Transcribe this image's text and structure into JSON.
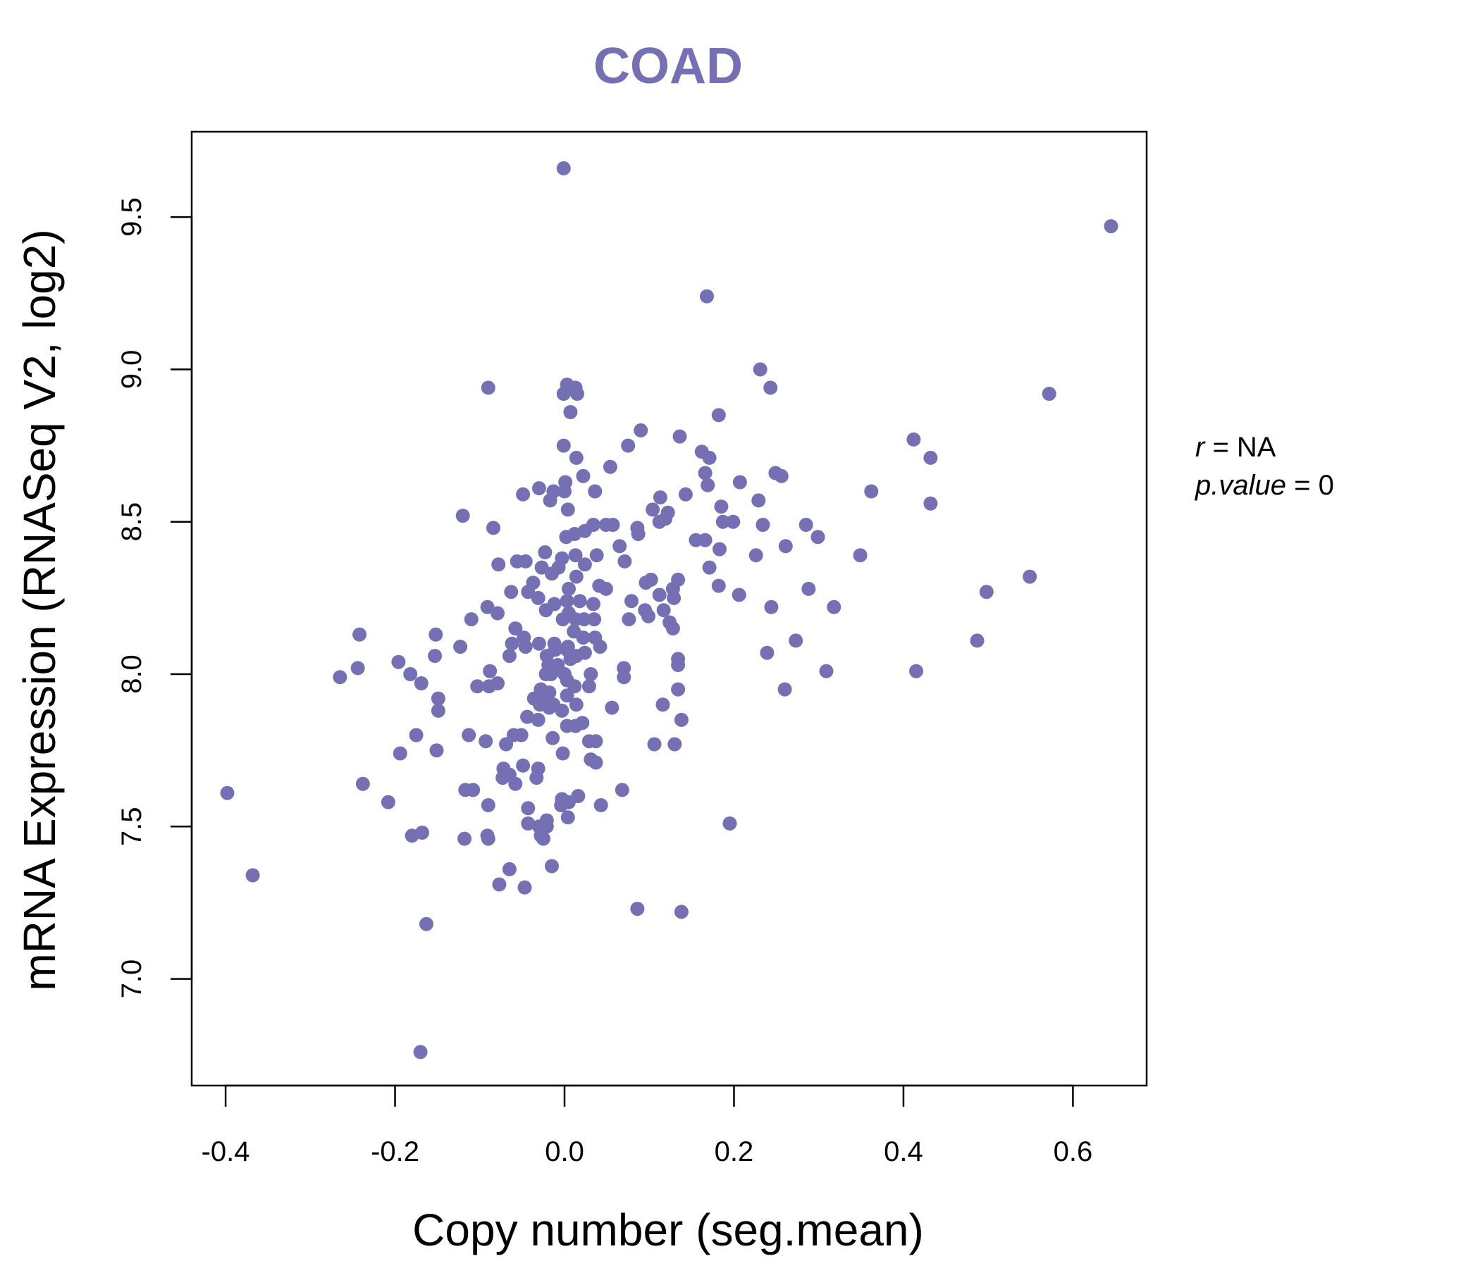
{
  "chart_data": {
    "type": "scatter",
    "title": "COAD",
    "xlabel": "Copy number (seg.mean)",
    "ylabel": "mRNA Expression (RNASeq V2, log2)",
    "xlim": [
      -0.44,
      0.687
    ],
    "ylim": [
      6.65,
      9.78
    ],
    "xticks": [
      "-0.4",
      "-0.2",
      "0.0",
      "0.2",
      "0.4",
      "0.6"
    ],
    "yticks": [
      "7.0",
      "7.5",
      "8.0",
      "8.5",
      "9.0",
      "9.5"
    ],
    "grid": false,
    "point_color": "#7570b3",
    "stats": {
      "r_label": "r",
      "r_value": "NA",
      "p_label": "p.value",
      "p_value": "0"
    },
    "points": [
      [
        -0.001,
        9.66
      ],
      [
        0.645,
        9.47
      ],
      [
        0.168,
        9.24
      ],
      [
        0.003,
        8.95
      ],
      [
        0.013,
        8.94
      ],
      [
        0.015,
        8.92
      ],
      [
        -0.001,
        8.92
      ],
      [
        -0.09,
        8.94
      ],
      [
        0.231,
        9.0
      ],
      [
        0.243,
        8.94
      ],
      [
        0.572,
        8.92
      ],
      [
        0.007,
        8.86
      ],
      [
        0.182,
        8.85
      ],
      [
        0.09,
        8.8
      ],
      [
        0.136,
        8.78
      ],
      [
        -0.001,
        8.75
      ],
      [
        0.075,
        8.75
      ],
      [
        0.162,
        8.73
      ],
      [
        0.412,
        8.77
      ],
      [
        0.432,
        8.71
      ],
      [
        0.014,
        8.71
      ],
      [
        0.171,
        8.71
      ],
      [
        0.166,
        8.66
      ],
      [
        0.054,
        8.68
      ],
      [
        0.022,
        8.65
      ],
      [
        0.249,
        8.66
      ],
      [
        0.256,
        8.65
      ],
      [
        0.001,
        8.63
      ],
      [
        0.207,
        8.63
      ],
      [
        0.169,
        8.62
      ],
      [
        -0.03,
        8.61
      ],
      [
        -0.013,
        8.6
      ],
      [
        0.0,
        8.6
      ],
      [
        0.036,
        8.6
      ],
      [
        -0.049,
        8.59
      ],
      [
        0.362,
        8.6
      ],
      [
        0.143,
        8.59
      ],
      [
        -0.017,
        8.57
      ],
      [
        0.113,
        8.58
      ],
      [
        0.229,
        8.57
      ],
      [
        0.432,
        8.56
      ],
      [
        0.004,
        8.54
      ],
      [
        0.104,
        8.54
      ],
      [
        0.122,
        8.53
      ],
      [
        0.185,
        8.55
      ],
      [
        -0.12,
        8.52
      ],
      [
        0.112,
        8.5
      ],
      [
        0.119,
        8.51
      ],
      [
        0.187,
        8.5
      ],
      [
        0.199,
        8.5
      ],
      [
        0.234,
        8.49
      ],
      [
        0.285,
        8.49
      ],
      [
        0.057,
        8.49
      ],
      [
        0.049,
        8.49
      ],
      [
        0.034,
        8.49
      ],
      [
        0.086,
        8.48
      ],
      [
        0.024,
        8.47
      ],
      [
        0.012,
        8.46
      ],
      [
        0.002,
        8.45
      ],
      [
        -0.084,
        8.48
      ],
      [
        0.155,
        8.44
      ],
      [
        0.166,
        8.44
      ],
      [
        0.299,
        8.45
      ],
      [
        0.087,
        8.46
      ],
      [
        0.261,
        8.42
      ],
      [
        0.065,
        8.42
      ],
      [
        0.183,
        8.41
      ],
      [
        0.349,
        8.39
      ],
      [
        0.226,
        8.39
      ],
      [
        0.038,
        8.39
      ],
      [
        0.013,
        8.39
      ],
      [
        -0.023,
        8.4
      ],
      [
        -0.056,
        8.37
      ],
      [
        -0.046,
        8.37
      ],
      [
        -0.003,
        8.38
      ],
      [
        0.071,
        8.37
      ],
      [
        -0.078,
        8.36
      ],
      [
        0.024,
        8.36
      ],
      [
        -0.007,
        8.35
      ],
      [
        -0.027,
        8.35
      ],
      [
        0.171,
        8.35
      ],
      [
        0.549,
        8.32
      ],
      [
        -0.015,
        8.33
      ],
      [
        0.014,
        8.32
      ],
      [
        0.102,
        8.31
      ],
      [
        0.134,
        8.31
      ],
      [
        0.096,
        8.3
      ],
      [
        0.041,
        8.29
      ],
      [
        -0.037,
        8.3
      ],
      [
        0.182,
        8.29
      ],
      [
        0.288,
        8.28
      ],
      [
        0.049,
        8.28
      ],
      [
        0.005,
        8.28
      ],
      [
        0.128,
        8.28
      ],
      [
        0.498,
        8.27
      ],
      [
        -0.063,
        8.27
      ],
      [
        -0.043,
        8.27
      ],
      [
        0.112,
        8.26
      ],
      [
        0.206,
        8.26
      ],
      [
        0.129,
        8.25
      ],
      [
        -0.031,
        8.25
      ],
      [
        0.003,
        8.24
      ],
      [
        0.018,
        8.24
      ],
      [
        0.079,
        8.24
      ],
      [
        0.034,
        8.23
      ],
      [
        -0.012,
        8.23
      ],
      [
        0.244,
        8.22
      ],
      [
        0.318,
        8.22
      ],
      [
        -0.091,
        8.22
      ],
      [
        -0.022,
        8.21
      ],
      [
        0.095,
        8.21
      ],
      [
        0.117,
        8.21
      ],
      [
        0.005,
        8.2
      ],
      [
        -0.079,
        8.2
      ],
      [
        0.099,
        8.19
      ],
      [
        0.013,
        8.18
      ],
      [
        -0.002,
        8.18
      ],
      [
        0.023,
        8.18
      ],
      [
        0.035,
        8.18
      ],
      [
        0.076,
        8.18
      ],
      [
        -0.11,
        8.18
      ],
      [
        0.124,
        8.17
      ],
      [
        0.128,
        8.15
      ],
      [
        -0.058,
        8.15
      ],
      [
        0.011,
        8.14
      ],
      [
        0.022,
        8.12
      ],
      [
        0.036,
        8.12
      ],
      [
        -0.048,
        8.12
      ],
      [
        0.273,
        8.11
      ],
      [
        0.487,
        8.11
      ],
      [
        -0.242,
        8.13
      ],
      [
        -0.152,
        8.13
      ],
      [
        -0.062,
        8.1
      ],
      [
        -0.03,
        8.1
      ],
      [
        -0.012,
        8.1
      ],
      [
        0.004,
        8.09
      ],
      [
        0.042,
        8.09
      ],
      [
        -0.046,
        8.09
      ],
      [
        -0.123,
        8.09
      ],
      [
        -0.011,
        8.08
      ],
      [
        0.003,
        8.08
      ],
      [
        0.024,
        8.07
      ],
      [
        0.014,
        8.06
      ],
      [
        -0.021,
        8.06
      ],
      [
        -0.153,
        8.06
      ],
      [
        -0.065,
        8.06
      ],
      [
        0.239,
        8.07
      ],
      [
        0.134,
        8.05
      ],
      [
        0.007,
        8.05
      ],
      [
        -0.019,
        8.03
      ],
      [
        -0.008,
        8.03
      ],
      [
        0.07,
        8.02
      ],
      [
        0.134,
        8.03
      ],
      [
        -0.196,
        8.04
      ],
      [
        -0.244,
        8.02
      ],
      [
        0.415,
        8.01
      ],
      [
        0.309,
        8.01
      ],
      [
        -0.016,
        8.0
      ],
      [
        0.0,
        8.0
      ],
      [
        -0.022,
        8.0
      ],
      [
        0.031,
        8.0
      ],
      [
        -0.265,
        7.99
      ],
      [
        -0.088,
        8.01
      ],
      [
        -0.182,
        8.0
      ],
      [
        0.07,
        7.99
      ],
      [
        0.003,
        7.98
      ],
      [
        -0.079,
        7.97
      ],
      [
        -0.089,
        7.96
      ],
      [
        -0.103,
        7.96
      ],
      [
        -0.169,
        7.97
      ],
      [
        0.029,
        7.96
      ],
      [
        0.012,
        7.96
      ],
      [
        -0.028,
        7.95
      ],
      [
        -0.018,
        7.94
      ],
      [
        0.134,
        7.95
      ],
      [
        0.26,
        7.95
      ],
      [
        0.003,
        7.93
      ],
      [
        -0.036,
        7.92
      ],
      [
        -0.022,
        7.91
      ],
      [
        -0.149,
        7.92
      ],
      [
        -0.029,
        7.9
      ],
      [
        -0.013,
        7.9
      ],
      [
        0.116,
        7.9
      ],
      [
        0.056,
        7.89
      ],
      [
        0.014,
        7.9
      ],
      [
        -0.018,
        7.89
      ],
      [
        -0.003,
        7.88
      ],
      [
        -0.149,
        7.88
      ],
      [
        -0.044,
        7.86
      ],
      [
        -0.031,
        7.85
      ],
      [
        0.021,
        7.84
      ],
      [
        0.138,
        7.85
      ],
      [
        0.003,
        7.83
      ],
      [
        0.013,
        7.83
      ],
      [
        -0.06,
        7.8
      ],
      [
        -0.051,
        7.8
      ],
      [
        -0.175,
        7.8
      ],
      [
        -0.113,
        7.8
      ],
      [
        -0.014,
        7.79
      ],
      [
        0.029,
        7.78
      ],
      [
        0.037,
        7.78
      ],
      [
        0.106,
        7.77
      ],
      [
        0.13,
        7.77
      ],
      [
        -0.093,
        7.78
      ],
      [
        -0.069,
        7.77
      ],
      [
        -0.002,
        7.74
      ],
      [
        -0.151,
        7.75
      ],
      [
        -0.194,
        7.74
      ],
      [
        0.031,
        7.72
      ],
      [
        0.037,
        7.71
      ],
      [
        -0.049,
        7.7
      ],
      [
        -0.072,
        7.69
      ],
      [
        -0.031,
        7.69
      ],
      [
        -0.065,
        7.67
      ],
      [
        -0.073,
        7.66
      ],
      [
        -0.033,
        7.66
      ],
      [
        -0.058,
        7.64
      ],
      [
        -0.108,
        7.62
      ],
      [
        -0.117,
        7.62
      ],
      [
        0.068,
        7.62
      ],
      [
        -0.238,
        7.64
      ],
      [
        -0.398,
        7.61
      ],
      [
        0.016,
        7.6
      ],
      [
        -0.003,
        7.59
      ],
      [
        -0.004,
        7.57
      ],
      [
        0.005,
        7.58
      ],
      [
        0.043,
        7.57
      ],
      [
        -0.208,
        7.58
      ],
      [
        -0.09,
        7.57
      ],
      [
        -0.043,
        7.56
      ],
      [
        -0.021,
        7.52
      ],
      [
        -0.043,
        7.51
      ],
      [
        0.004,
        7.53
      ],
      [
        -0.03,
        7.5
      ],
      [
        -0.021,
        7.5
      ],
      [
        0.195,
        7.51
      ],
      [
        -0.028,
        7.47
      ],
      [
        -0.025,
        7.46
      ],
      [
        -0.091,
        7.47
      ],
      [
        -0.09,
        7.46
      ],
      [
        -0.118,
        7.46
      ],
      [
        -0.168,
        7.48
      ],
      [
        -0.18,
        7.47
      ],
      [
        -0.015,
        7.37
      ],
      [
        -0.065,
        7.36
      ],
      [
        -0.077,
        7.31
      ],
      [
        -0.047,
        7.3
      ],
      [
        -0.368,
        7.34
      ],
      [
        0.086,
        7.23
      ],
      [
        0.138,
        7.22
      ],
      [
        -0.163,
        7.18
      ],
      [
        -0.17,
        6.76
      ]
    ]
  }
}
